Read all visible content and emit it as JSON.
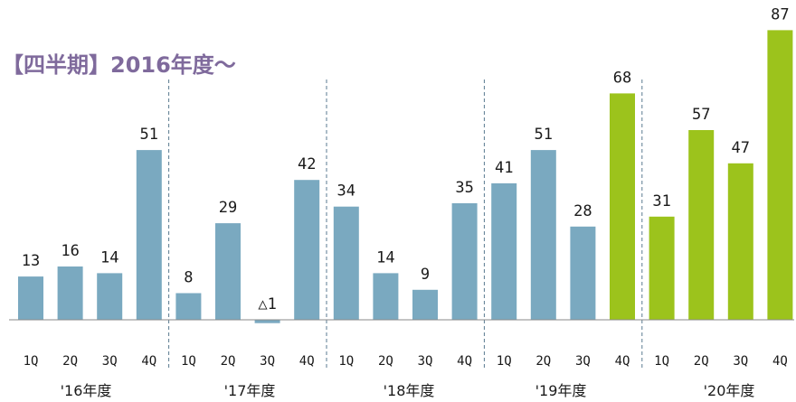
{
  "chart_data": {
    "type": "bar",
    "title": "【四半期】2016年度～",
    "categories": [
      "1Q",
      "2Q",
      "3Q",
      "4Q",
      "1Q",
      "2Q",
      "3Q",
      "4Q",
      "1Q",
      "2Q",
      "3Q",
      "4Q",
      "1Q",
      "2Q",
      "3Q",
      "4Q",
      "1Q",
      "2Q",
      "3Q",
      "4Q"
    ],
    "groups": [
      "'16年度",
      "'17年度",
      "'18年度",
      "'19年度",
      "'20年度"
    ],
    "values": [
      13,
      16,
      14,
      51,
      8,
      29,
      -1,
      42,
      34,
      14,
      9,
      35,
      41,
      51,
      28,
      68,
      31,
      57,
      47,
      87
    ],
    "value_labels": [
      "13",
      "16",
      "14",
      "51",
      "8",
      "29",
      "△1",
      "42",
      "34",
      "14",
      "9",
      "35",
      "41",
      "51",
      "28",
      "68",
      "31",
      "57",
      "47",
      "87"
    ],
    "highlight_from_index": 15,
    "colors": {
      "base": "#7aa9c0",
      "highlight": "#9cc31c",
      "divider": "#5a7a90",
      "title": "#7f6a9c"
    },
    "grid": false,
    "ylim": [
      -2,
      90
    ]
  }
}
